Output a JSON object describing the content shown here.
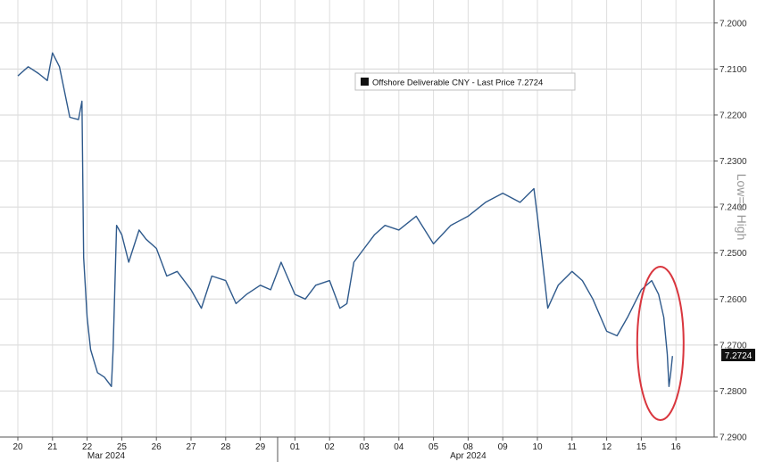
{
  "chart_data": {
    "type": "line",
    "legend": "Offshore Deliverable CNY - Last Price 7.2724",
    "ylabel_right": "Low=> High",
    "ylim": [
      7.29,
      7.195
    ],
    "y_inverted": true,
    "yticks": [
      "7.2000",
      "7.2100",
      "7.2200",
      "7.2300",
      "7.2400",
      "7.2500",
      "7.2600",
      "7.2700",
      "7.2800",
      "7.2900"
    ],
    "last_value_label": "7.2724",
    "x_day_labels": [
      "20",
      "21",
      "22",
      "25",
      "26",
      "27",
      "28",
      "29",
      "01",
      "02",
      "03",
      "04",
      "05",
      "08",
      "09",
      "10",
      "11",
      "12",
      "15",
      "16"
    ],
    "x_month_labels": [
      "Mar 2024",
      "Apr 2024"
    ],
    "annotation": "red-ellipse-around-final-drop",
    "line_color": "#2f5a8c",
    "highlight_color": "#d9363e",
    "series": [
      {
        "name": "Offshore Deliverable CNY",
        "x": [
          0,
          0.3,
          0.6,
          0.85,
          1.0,
          1.2,
          1.5,
          1.75,
          1.85,
          1.9,
          2.0,
          2.1,
          2.3,
          2.5,
          2.7,
          2.75,
          2.85,
          3.0,
          3.2,
          3.5,
          3.7,
          4.0,
          4.3,
          4.6,
          5.0,
          5.3,
          5.6,
          6.0,
          6.3,
          6.6,
          7.0,
          7.3,
          7.6,
          8.0,
          8.3,
          8.6,
          9.0,
          9.3,
          9.5,
          9.7,
          10.0,
          10.3,
          10.6,
          11.0,
          11.5,
          12.0,
          12.5,
          13.0,
          13.5,
          14.0,
          14.5,
          14.9,
          15.0,
          15.3,
          15.6,
          16.0,
          16.3,
          16.6,
          17.0,
          17.3,
          17.6,
          18.0,
          18.3,
          18.5,
          18.65,
          18.75,
          18.8,
          18.85,
          18.9
        ],
        "values": [
          7.2115,
          7.2095,
          7.211,
          7.2125,
          7.2065,
          7.2095,
          7.2205,
          7.221,
          7.217,
          7.251,
          7.264,
          7.271,
          7.276,
          7.277,
          7.279,
          7.271,
          7.244,
          7.246,
          7.252,
          7.245,
          7.247,
          7.249,
          7.255,
          7.254,
          7.258,
          7.262,
          7.255,
          7.256,
          7.261,
          7.259,
          7.257,
          7.258,
          7.252,
          7.259,
          7.26,
          7.257,
          7.256,
          7.262,
          7.261,
          7.252,
          7.249,
          7.246,
          7.244,
          7.245,
          7.242,
          7.248,
          7.244,
          7.242,
          7.239,
          7.237,
          7.239,
          7.236,
          7.242,
          7.262,
          7.257,
          7.254,
          7.256,
          7.26,
          7.267,
          7.268,
          7.264,
          7.258,
          7.256,
          7.259,
          7.264,
          7.272,
          7.279,
          7.276,
          7.2724
        ]
      }
    ]
  }
}
